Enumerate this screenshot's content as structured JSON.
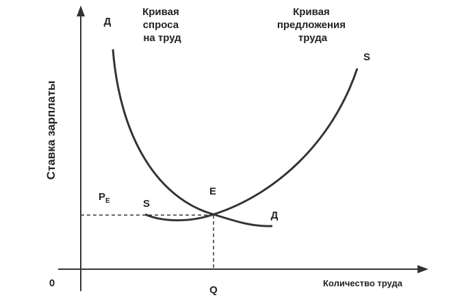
{
  "axes": {
    "y_label": "Ставка зарплаты",
    "x_label": "Количество труда",
    "origin": "0"
  },
  "demand": {
    "top_label": "Д",
    "bottom_label": "Д",
    "caption": [
      "Кривая",
      "спроса",
      "на труд"
    ]
  },
  "supply": {
    "top_label": "S",
    "bottom_label": "S",
    "caption": [
      "Кривая",
      "предложения",
      "труда"
    ]
  },
  "equilibrium": {
    "point": "E",
    "price": {
      "symbol": "P",
      "subscript": "E"
    },
    "quantity": "Q"
  }
}
